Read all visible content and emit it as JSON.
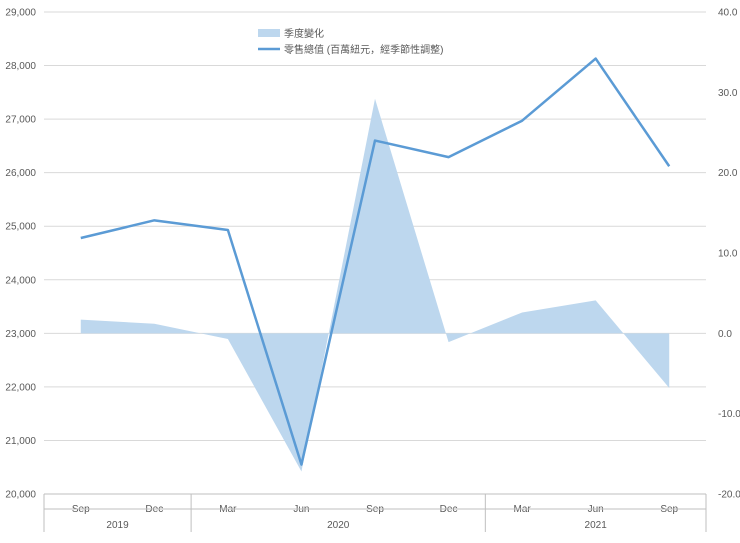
{
  "chart_data": {
    "type": "line",
    "categories": [
      "Sep",
      "Dec",
      "Mar",
      "Jun",
      "Sep",
      "Dec",
      "Mar",
      "Jun",
      "Sep"
    ],
    "groups": [
      {
        "label": "2019",
        "span": [
          0,
          1
        ]
      },
      {
        "label": "2020",
        "span": [
          2,
          5
        ]
      },
      {
        "label": "2021",
        "span": [
          6,
          8
        ]
      }
    ],
    "series": [
      {
        "name": "季度變化",
        "kind": "area",
        "axis": "right",
        "color": "#BDD7EE",
        "values": [
          1.7,
          1.2,
          -0.7,
          -17.2,
          29.2,
          -1.1,
          2.6,
          4.1,
          -6.8
        ]
      },
      {
        "name": "零售總值 (百萬紐元，經季節性調整)",
        "kind": "line",
        "axis": "left",
        "color": "#5B9BD5",
        "values": [
          24780,
          25110,
          24930,
          20550,
          26600,
          26290,
          26970,
          28130,
          26120
        ]
      }
    ],
    "y_left": {
      "ylim": [
        20000,
        29000
      ],
      "ticks": [
        "20,000",
        "21,000",
        "22,000",
        "23,000",
        "24,000",
        "25,000",
        "26,000",
        "27,000",
        "28,000",
        "29,000"
      ]
    },
    "y_right": {
      "ylim": [
        -20,
        40
      ],
      "ticks": [
        "-20.0",
        "-10.0",
        "0.0",
        "10.0",
        "20.0",
        "30.0",
        "40.0"
      ]
    },
    "grid": true,
    "legend": "top-center"
  }
}
